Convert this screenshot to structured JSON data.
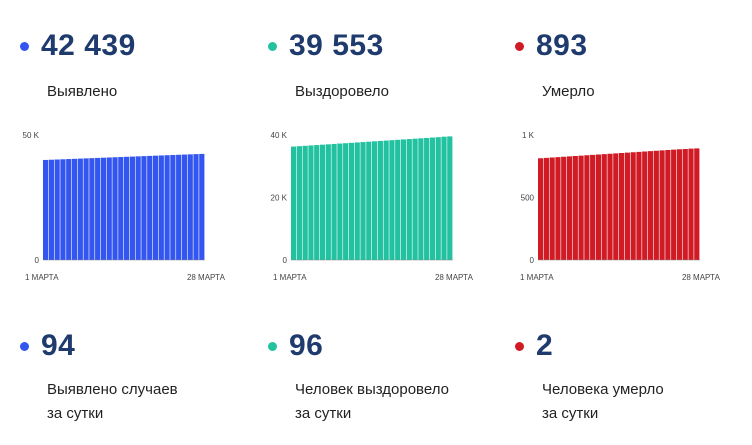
{
  "colors": {
    "blue": "#3355f0",
    "green": "#22c1a0",
    "red": "#d01b25"
  },
  "stats": [
    {
      "value": "42 439",
      "label": "Выявлено",
      "color": "#3355f0"
    },
    {
      "value": "39 553",
      "label": "Выздоровело",
      "color": "#22c1a0"
    },
    {
      "value": "893",
      "label": "Умерло",
      "color": "#d01b25"
    }
  ],
  "daily": [
    {
      "value": "94",
      "label_line1": "Выявлено случаев",
      "label_line2": "за сутки",
      "color": "#3355f0"
    },
    {
      "value": "96",
      "label_line1": "Человек выздоровело",
      "label_line2": "за сутки",
      "color": "#22c1a0"
    },
    {
      "value": "2",
      "label_line1": "Человека умерло",
      "label_line2": "за сутки",
      "color": "#d01b25"
    }
  ],
  "chart_data": [
    {
      "type": "bar",
      "x_start_label": "1 МАРТА",
      "x_end_label": "28 МАРТА",
      "ylim": [
        0,
        50000
      ],
      "yticks": [
        {
          "value": 0,
          "label": "0"
        },
        {
          "value": 50000,
          "label": "50 K"
        }
      ],
      "color": "#3355f0",
      "values": [
        40020,
        40110,
        40200,
        40290,
        40380,
        40470,
        40560,
        40650,
        40740,
        40830,
        40920,
        41010,
        41100,
        41190,
        41280,
        41370,
        41460,
        41550,
        41640,
        41730,
        41820,
        41910,
        42000,
        42090,
        42180,
        42260,
        42345,
        42439
      ]
    },
    {
      "type": "bar",
      "x_start_label": "1 МАРТА",
      "x_end_label": "28 МАРТА",
      "ylim": [
        0,
        40000
      ],
      "yticks": [
        {
          "value": 0,
          "label": "0"
        },
        {
          "value": 20000,
          "label": "20 K"
        },
        {
          "value": 40000,
          "label": "40 K"
        }
      ],
      "color": "#22c1a0",
      "values": [
        36300,
        36420,
        36540,
        36660,
        36780,
        36900,
        37020,
        37140,
        37260,
        37380,
        37500,
        37620,
        37740,
        37860,
        37980,
        38100,
        38220,
        38340,
        38460,
        38580,
        38700,
        38820,
        38940,
        39060,
        39180,
        39300,
        39457,
        39553
      ]
    },
    {
      "type": "bar",
      "x_start_label": "1 МАРТА",
      "x_end_label": "28 МАРТА",
      "ylim": [
        0,
        1000
      ],
      "yticks": [
        {
          "value": 0,
          "label": "0"
        },
        {
          "value": 500,
          "label": "500"
        },
        {
          "value": 1000,
          "label": "1 K"
        }
      ],
      "color": "#d01b25",
      "values": [
        814,
        817,
        820,
        823,
        826,
        829,
        832,
        835,
        838,
        841,
        844,
        847,
        850,
        853,
        856,
        859,
        862,
        865,
        868,
        871,
        874,
        877,
        880,
        883,
        886,
        888,
        891,
        893
      ]
    }
  ]
}
